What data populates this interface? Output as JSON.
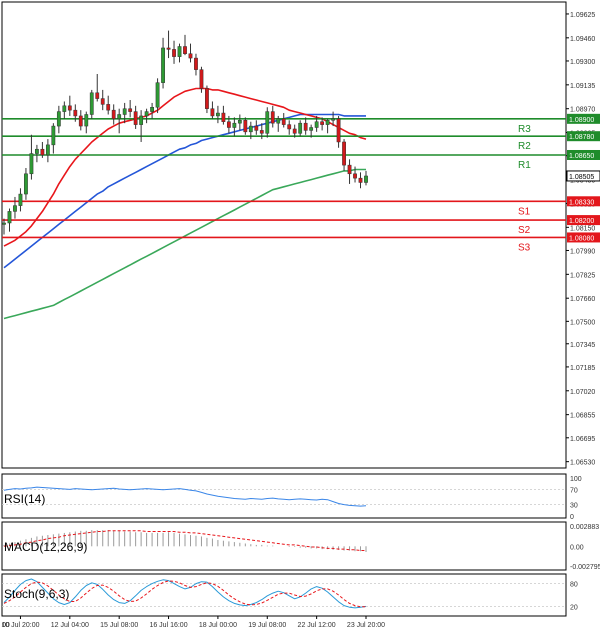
{
  "colors": {
    "frame": "#000000",
    "grid": "#c8c8c8",
    "bull": "#2e9a34",
    "bear": "#d2191b",
    "wick": "#333333",
    "ma_fast": "#e8161b",
    "ma_mid": "#2456d8",
    "ma_slow": "#3aa85a",
    "resistance": "#1f8c2b",
    "support": "#e3161b",
    "rsi": "#3a86e8",
    "macd_hist": "#9a9a9a",
    "macd_signal": "#e8161b",
    "stoch_k": "#2a9ad8",
    "stoch_d": "#e8161b",
    "tag_text": "#ffffff",
    "label_text": "#333333"
  },
  "chart_data": [
    {
      "type": "candlestick",
      "symbol": "EUR/USD",
      "y_ticks": [
        "1.09625",
        "1.09460",
        "1.09300",
        "1.09135",
        "1.08970",
        "1.08805",
        "1.08645",
        "1.08480",
        "1.08315",
        "1.08150",
        "1.07990",
        "1.07825",
        "1.07660",
        "1.07500",
        "1.07345",
        "1.07185",
        "1.07020",
        "1.06855",
        "1.06695",
        "1.06530"
      ],
      "ylim": [
        1.065,
        1.0968
      ],
      "x_ticks": [
        "10 Jul 20:00",
        "12 Jul 04:00",
        "15 Jul 08:00",
        "16 Jul 16:00",
        "18 Jul 00:00",
        "19 Jul 08:00",
        "22 Jul 12:00",
        "23 Jul 20:00"
      ],
      "x_tick_index": [
        3,
        12,
        21,
        30,
        39,
        48,
        57,
        66
      ],
      "x_tick_first": "00",
      "candles": [
        {
          "o": 1.0817,
          "h": 1.0821,
          "l": 1.081,
          "c": 1.0818
        },
        {
          "o": 1.0818,
          "h": 1.0828,
          "l": 1.0812,
          "c": 1.0826
        },
        {
          "o": 1.0826,
          "h": 1.0836,
          "l": 1.0821,
          "c": 1.083
        },
        {
          "o": 1.083,
          "h": 1.0842,
          "l": 1.0826,
          "c": 1.0838
        },
        {
          "o": 1.0838,
          "h": 1.0856,
          "l": 1.0834,
          "c": 1.0852
        },
        {
          "o": 1.0852,
          "h": 1.0879,
          "l": 1.0848,
          "c": 1.0866
        },
        {
          "o": 1.0866,
          "h": 1.0872,
          "l": 1.086,
          "c": 1.0869
        },
        {
          "o": 1.0869,
          "h": 1.0874,
          "l": 1.0863,
          "c": 1.0865
        },
        {
          "o": 1.0865,
          "h": 1.0876,
          "l": 1.086,
          "c": 1.0872
        },
        {
          "o": 1.0872,
          "h": 1.0887,
          "l": 1.0866,
          "c": 1.0885
        },
        {
          "o": 1.0885,
          "h": 1.0899,
          "l": 1.088,
          "c": 1.0895
        },
        {
          "o": 1.0895,
          "h": 1.0902,
          "l": 1.089,
          "c": 1.0899
        },
        {
          "o": 1.0899,
          "h": 1.0906,
          "l": 1.0892,
          "c": 1.0896
        },
        {
          "o": 1.0896,
          "h": 1.09,
          "l": 1.0888,
          "c": 1.0892
        },
        {
          "o": 1.0892,
          "h": 1.0896,
          "l": 1.0882,
          "c": 1.0885
        },
        {
          "o": 1.0885,
          "h": 1.0895,
          "l": 1.088,
          "c": 1.0893
        },
        {
          "o": 1.0893,
          "h": 1.091,
          "l": 1.089,
          "c": 1.0908
        },
        {
          "o": 1.0908,
          "h": 1.0921,
          "l": 1.0902,
          "c": 1.0904
        },
        {
          "o": 1.0904,
          "h": 1.091,
          "l": 1.0896,
          "c": 1.09
        },
        {
          "o": 1.09,
          "h": 1.0906,
          "l": 1.0893,
          "c": 1.0896
        },
        {
          "o": 1.0896,
          "h": 1.09,
          "l": 1.0886,
          "c": 1.089
        },
        {
          "o": 1.089,
          "h": 1.0897,
          "l": 1.088,
          "c": 1.0893
        },
        {
          "o": 1.0893,
          "h": 1.0901,
          "l": 1.0887,
          "c": 1.0897
        },
        {
          "o": 1.0897,
          "h": 1.0903,
          "l": 1.0891,
          "c": 1.0895
        },
        {
          "o": 1.0895,
          "h": 1.0899,
          "l": 1.0883,
          "c": 1.0886
        },
        {
          "o": 1.0886,
          "h": 1.0896,
          "l": 1.0874,
          "c": 1.0892
        },
        {
          "o": 1.0892,
          "h": 1.0897,
          "l": 1.0887,
          "c": 1.0895
        },
        {
          "o": 1.0895,
          "h": 1.0901,
          "l": 1.089,
          "c": 1.0898
        },
        {
          "o": 1.0898,
          "h": 1.0918,
          "l": 1.0894,
          "c": 1.0915
        },
        {
          "o": 1.0915,
          "h": 1.0946,
          "l": 1.0911,
          "c": 1.0939
        },
        {
          "o": 1.0939,
          "h": 1.0951,
          "l": 1.0932,
          "c": 1.0938
        },
        {
          "o": 1.0938,
          "h": 1.0944,
          "l": 1.0928,
          "c": 1.0933
        },
        {
          "o": 1.0933,
          "h": 1.0942,
          "l": 1.0929,
          "c": 1.094
        },
        {
          "o": 1.094,
          "h": 1.0948,
          "l": 1.0934,
          "c": 1.0935
        },
        {
          "o": 1.0935,
          "h": 1.0942,
          "l": 1.0929,
          "c": 1.0932
        },
        {
          "o": 1.0932,
          "h": 1.0935,
          "l": 1.092,
          "c": 1.0924
        },
        {
          "o": 1.0924,
          "h": 1.0926,
          "l": 1.0908,
          "c": 1.0911
        },
        {
          "o": 1.0911,
          "h": 1.0913,
          "l": 1.0894,
          "c": 1.0897
        },
        {
          "o": 1.0897,
          "h": 1.0902,
          "l": 1.089,
          "c": 1.0892
        },
        {
          "o": 1.0892,
          "h": 1.0899,
          "l": 1.0887,
          "c": 1.0894
        },
        {
          "o": 1.0894,
          "h": 1.0899,
          "l": 1.0886,
          "c": 1.0888
        },
        {
          "o": 1.0888,
          "h": 1.0892,
          "l": 1.088,
          "c": 1.0884
        },
        {
          "o": 1.0884,
          "h": 1.0891,
          "l": 1.0878,
          "c": 1.0887
        },
        {
          "o": 1.0887,
          "h": 1.0893,
          "l": 1.0882,
          "c": 1.0889
        },
        {
          "o": 1.0889,
          "h": 1.0891,
          "l": 1.0879,
          "c": 1.0881
        },
        {
          "o": 1.0881,
          "h": 1.0888,
          "l": 1.0876,
          "c": 1.0885
        },
        {
          "o": 1.0885,
          "h": 1.0889,
          "l": 1.0879,
          "c": 1.0882
        },
        {
          "o": 1.0882,
          "h": 1.0887,
          "l": 1.0876,
          "c": 1.088
        },
        {
          "o": 1.088,
          "h": 1.0898,
          "l": 1.0877,
          "c": 1.0895
        },
        {
          "o": 1.0895,
          "h": 1.0899,
          "l": 1.0884,
          "c": 1.0887
        },
        {
          "o": 1.0887,
          "h": 1.0892,
          "l": 1.0881,
          "c": 1.089
        },
        {
          "o": 1.089,
          "h": 1.0894,
          "l": 1.0884,
          "c": 1.0886
        },
        {
          "o": 1.0886,
          "h": 1.0889,
          "l": 1.0879,
          "c": 1.0883
        },
        {
          "o": 1.0883,
          "h": 1.0886,
          "l": 1.0877,
          "c": 1.088
        },
        {
          "o": 1.088,
          "h": 1.0889,
          "l": 1.0878,
          "c": 1.0887
        },
        {
          "o": 1.0887,
          "h": 1.0891,
          "l": 1.0879,
          "c": 1.0882
        },
        {
          "o": 1.0882,
          "h": 1.0886,
          "l": 1.0877,
          "c": 1.0884
        },
        {
          "o": 1.0884,
          "h": 1.0892,
          "l": 1.0881,
          "c": 1.0888
        },
        {
          "o": 1.0888,
          "h": 1.0891,
          "l": 1.0882,
          "c": 1.0886
        },
        {
          "o": 1.0886,
          "h": 1.089,
          "l": 1.088,
          "c": 1.0889
        },
        {
          "o": 1.0889,
          "h": 1.0895,
          "l": 1.0885,
          "c": 1.089
        },
        {
          "o": 1.089,
          "h": 1.0892,
          "l": 1.087,
          "c": 1.0874
        },
        {
          "o": 1.0874,
          "h": 1.0876,
          "l": 1.0854,
          "c": 1.0858
        },
        {
          "o": 1.0858,
          "h": 1.0862,
          "l": 1.0845,
          "c": 1.0852
        },
        {
          "o": 1.0852,
          "h": 1.0857,
          "l": 1.0846,
          "c": 1.0849
        },
        {
          "o": 1.0849,
          "h": 1.0853,
          "l": 1.0842,
          "c": 1.0846
        },
        {
          "o": 1.0846,
          "h": 1.0854,
          "l": 1.0844,
          "c": 1.08505
        }
      ],
      "ma_fast": {
        "name": "",
        "values": [
          1.0802,
          1.0804,
          1.0806,
          1.0809,
          1.0812,
          1.0816,
          1.0821,
          1.0826,
          1.0832,
          1.0838,
          1.0845,
          1.0851,
          1.0857,
          1.0862,
          1.0866,
          1.087,
          1.0874,
          1.0877,
          1.088,
          1.0883,
          1.0885,
          1.0887,
          1.0888,
          1.0889,
          1.089,
          1.0891,
          1.0892,
          1.0894,
          1.0896,
          1.0899,
          1.0902,
          1.0905,
          1.0907,
          1.0909,
          1.091,
          1.0911,
          1.0911,
          1.0911,
          1.091,
          1.091,
          1.0909,
          1.0908,
          1.0907,
          1.0906,
          1.0905,
          1.0904,
          1.0903,
          1.0902,
          1.0901,
          1.09,
          1.0899,
          1.0898,
          1.0896,
          1.0895,
          1.0894,
          1.0893,
          1.0892,
          1.0891,
          1.089,
          1.0888,
          1.0886,
          1.0884,
          1.0882,
          1.088,
          1.0879,
          1.0877,
          1.0876
        ]
      },
      "ma_mid": {
        "name": "",
        "values": [
          1.0787,
          1.079,
          1.0793,
          1.0796,
          1.0799,
          1.0802,
          1.0805,
          1.0808,
          1.0811,
          1.0814,
          1.0817,
          1.082,
          1.0823,
          1.0826,
          1.0829,
          1.0832,
          1.0835,
          1.0838,
          1.084,
          1.0843,
          1.0845,
          1.0847,
          1.0849,
          1.0851,
          1.0853,
          1.0855,
          1.0857,
          1.0859,
          1.0861,
          1.0863,
          1.0865,
          1.0867,
          1.0869,
          1.087,
          1.0872,
          1.0873,
          1.0875,
          1.0876,
          1.0877,
          1.0878,
          1.0879,
          1.088,
          1.0881,
          1.0882,
          1.0883,
          1.0884,
          1.0885,
          1.0886,
          1.0887,
          1.0888,
          1.0889,
          1.089,
          1.0891,
          1.0892,
          1.0893,
          1.0893,
          1.0893,
          1.0893,
          1.0893,
          1.0893,
          1.0893,
          1.0893,
          1.0892,
          1.0892,
          1.0892,
          1.0892,
          1.0892
        ],
        "end_index": 66
      },
      "ma_slow": {
        "name": "",
        "values": [
          1.0752,
          1.0753,
          1.0754,
          1.0755,
          1.0756,
          1.0757,
          1.0758,
          1.0759,
          1.076,
          1.0761,
          1.0763,
          1.0765,
          1.0767,
          1.0769,
          1.0771,
          1.0773,
          1.0775,
          1.0777,
          1.0779,
          1.0781,
          1.0783,
          1.0785,
          1.0787,
          1.0789,
          1.0791,
          1.0793,
          1.0795,
          1.0797,
          1.0799,
          1.0801,
          1.0803,
          1.0805,
          1.0807,
          1.0809,
          1.0811,
          1.0813,
          1.0815,
          1.0817,
          1.0819,
          1.0821,
          1.0823,
          1.0825,
          1.0827,
          1.0829,
          1.0831,
          1.0833,
          1.0835,
          1.0837,
          1.0839,
          1.0841,
          1.0842,
          1.0843,
          1.0844,
          1.0845,
          1.0846,
          1.0847,
          1.0848,
          1.0849,
          1.085,
          1.0851,
          1.0852,
          1.0853,
          1.0854,
          1.0854,
          1.0855,
          1.0855,
          1.0855
        ]
      },
      "levels": [
        {
          "label": "R3",
          "value": 1.089,
          "tag": "1.08900",
          "kind": "resistance"
        },
        {
          "label": "R2",
          "value": 1.0878,
          "tag": "1.08780",
          "kind": "resistance"
        },
        {
          "label": "R1",
          "value": 1.0865,
          "tag": "1.08650",
          "kind": "resistance"
        },
        {
          "label": "S1",
          "value": 1.0833,
          "tag": "1.08330",
          "kind": "support"
        },
        {
          "label": "S2",
          "value": 1.082,
          "tag": "1.08200",
          "kind": "support"
        },
        {
          "label": "S3",
          "value": 1.0808,
          "tag": "1.08080",
          "kind": "support"
        }
      ],
      "current_price": {
        "value": 1.08505,
        "tag": "1.08505"
      }
    },
    {
      "type": "line",
      "title": "RSI(14)",
      "y_ticks": [
        "100",
        "70",
        "30",
        "0"
      ],
      "ylim": [
        0,
        100
      ],
      "series": [
        {
          "values": [
            68,
            70,
            72,
            71,
            73,
            74,
            76,
            75,
            74,
            73,
            72,
            71,
            70,
            72,
            71,
            70,
            69,
            70,
            71,
            72,
            73,
            71,
            70,
            69,
            70,
            71,
            72,
            71,
            70,
            69,
            70,
            71,
            72,
            70,
            68,
            66,
            62,
            58,
            55,
            52,
            50,
            48,
            46,
            45,
            44,
            46,
            45,
            44,
            46,
            47,
            45,
            44,
            43,
            44,
            45,
            44,
            43,
            42,
            44,
            43,
            38,
            33,
            30,
            28,
            27,
            26,
            27
          ]
        }
      ]
    },
    {
      "type": "bar",
      "title": "MACD(12,26,9)",
      "y_ticks": [
        "0.002883",
        "0.00",
        "-0.002795"
      ],
      "ylim": [
        -0.002795,
        0.002883
      ],
      "values": [
        0.0002,
        0.0004,
        0.0006,
        0.0008,
        0.001,
        0.0012,
        0.0014,
        0.0015,
        0.0016,
        0.0017,
        0.0018,
        0.0019,
        0.002,
        0.0021,
        0.0022,
        0.0022,
        0.0023,
        0.0023,
        0.0023,
        0.0023,
        0.0022,
        0.0022,
        0.0021,
        0.0021,
        0.002,
        0.002,
        0.0019,
        0.0019,
        0.0019,
        0.0019,
        0.002,
        0.0019,
        0.0018,
        0.0017,
        0.0016,
        0.0015,
        0.0014,
        0.0012,
        0.0011,
        0.0009,
        0.0008,
        0.0007,
        0.0006,
        0.0005,
        0.0004,
        0.0003,
        0.0002,
        0.0002,
        0.0001,
        0.0001,
        0.0,
        0.0,
        -0.0001,
        -0.0001,
        -0.0002,
        -0.0002,
        -0.0003,
        -0.0003,
        -0.0004,
        -0.0004,
        -0.0005,
        -0.0005,
        -0.0006,
        -0.0006,
        -0.0007,
        -0.0007,
        -0.0008
      ],
      "signal": [
        0.0,
        0.0001,
        0.0002,
        0.0003,
        0.0005,
        0.0006,
        0.0008,
        0.0009,
        0.0011,
        0.0012,
        0.0013,
        0.0015,
        0.0016,
        0.0017,
        0.0018,
        0.0019,
        0.002,
        0.0021,
        0.0021,
        0.0022,
        0.0022,
        0.0022,
        0.0022,
        0.0022,
        0.0022,
        0.0022,
        0.0021,
        0.0021,
        0.0021,
        0.0021,
        0.0021,
        0.0021,
        0.002,
        0.002,
        0.0019,
        0.0019,
        0.0018,
        0.0017,
        0.0016,
        0.0015,
        0.0014,
        0.0013,
        0.0012,
        0.0011,
        0.001,
        0.0009,
        0.0008,
        0.0007,
        0.0006,
        0.0005,
        0.0004,
        0.0003,
        0.0002,
        0.0002,
        0.0001,
        0.0,
        -0.0001,
        -0.0001,
        -0.0002,
        -0.0003,
        -0.0003,
        -0.0004,
        -0.0004,
        -0.0005,
        -0.0005,
        -0.0006,
        -0.0006
      ]
    },
    {
      "type": "line",
      "title": "Stoch(9,6,3)",
      "y_ticks": [
        "80",
        "20"
      ],
      "ylim": [
        0,
        100
      ],
      "series": [
        {
          "values": [
            30,
            45,
            62,
            78,
            88,
            92,
            85,
            70,
            55,
            40,
            30,
            25,
            30,
            45,
            62,
            75,
            82,
            78,
            65,
            50,
            38,
            30,
            28,
            35,
            48,
            62,
            72,
            80,
            86,
            90,
            88,
            80,
            72,
            66,
            70,
            80,
            85,
            84,
            72,
            58,
            45,
            35,
            28,
            24,
            22,
            25,
            30,
            38,
            48,
            55,
            60,
            56,
            48,
            40,
            45,
            55,
            66,
            72,
            68,
            58,
            45,
            32,
            22,
            18,
            16,
            18,
            20
          ]
        },
        {
          "values": [
            28,
            35,
            45,
            58,
            70,
            80,
            84,
            82,
            74,
            62,
            50,
            40,
            33,
            33,
            42,
            55,
            67,
            75,
            76,
            70,
            60,
            48,
            38,
            33,
            34,
            42,
            53,
            65,
            75,
            83,
            87,
            86,
            82,
            75,
            70,
            72,
            78,
            82,
            80,
            73,
            62,
            50,
            40,
            32,
            26,
            24,
            25,
            29,
            36,
            44,
            52,
            55,
            55,
            50,
            46,
            47,
            53,
            61,
            66,
            66,
            60,
            50,
            38,
            28,
            22,
            19,
            19
          ]
        }
      ]
    }
  ]
}
